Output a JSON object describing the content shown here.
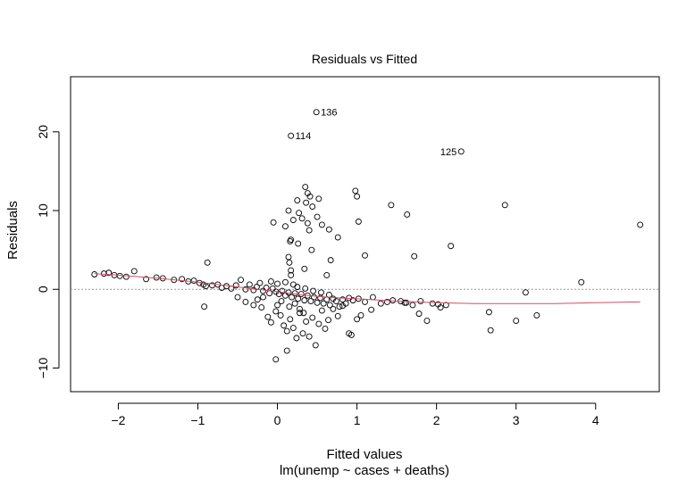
{
  "chart_data": {
    "type": "scatter",
    "title": "Residuals vs Fitted",
    "xlabel": "Fitted values",
    "subtitle": "lm(unemp ~ cases + deaths)",
    "ylabel": "Residuals",
    "xlim": [
      -2.6,
      4.8
    ],
    "ylim": [
      -13,
      27
    ],
    "x_ticks": [
      -2,
      -1,
      0,
      1,
      2,
      3,
      4
    ],
    "y_ticks": [
      -10,
      0,
      10,
      20
    ],
    "reference_line_y": 0,
    "points": [
      [
        0.49,
        22.5
      ],
      [
        0.17,
        19.5
      ],
      [
        2.31,
        17.5
      ],
      [
        0.35,
        13.0
      ],
      [
        0.38,
        12.2
      ],
      [
        0.41,
        11.8
      ],
      [
        0.98,
        12.5
      ],
      [
        1.0,
        11.8
      ],
      [
        0.52,
        11.5
      ],
      [
        0.25,
        11.3
      ],
      [
        0.36,
        11.0
      ],
      [
        0.44,
        10.5
      ],
      [
        0.14,
        10.0
      ],
      [
        0.27,
        9.7
      ],
      [
        0.31,
        9.0
      ],
      [
        0.5,
        9.2
      ],
      [
        0.2,
        8.8
      ],
      [
        -0.05,
        8.5
      ],
      [
        0.38,
        8.4
      ],
      [
        0.56,
        8.2
      ],
      [
        1.02,
        8.6
      ],
      [
        0.1,
        8.0
      ],
      [
        0.4,
        7.5
      ],
      [
        0.65,
        7.6
      ],
      [
        0.76,
        6.6
      ],
      [
        0.17,
        6.3
      ],
      [
        0.16,
        6.1
      ],
      [
        0.26,
        5.8
      ],
      [
        0.43,
        5.0
      ],
      [
        1.43,
        10.7
      ],
      [
        1.63,
        9.5
      ],
      [
        2.86,
        10.7
      ],
      [
        4.56,
        8.2
      ],
      [
        2.18,
        5.5
      ],
      [
        1.72,
        4.2
      ],
      [
        1.1,
        4.3
      ],
      [
        0.14,
        4.1
      ],
      [
        0.15,
        3.4
      ],
      [
        0.67,
        3.7
      ],
      [
        -0.88,
        3.4
      ],
      [
        0.34,
        2.6
      ],
      [
        0.62,
        1.8
      ],
      [
        0.17,
        2.4
      ],
      [
        0.17,
        1.8
      ],
      [
        -2.3,
        1.9
      ],
      [
        -2.18,
        2.0
      ],
      [
        -2.12,
        2.1
      ],
      [
        -2.05,
        1.8
      ],
      [
        -1.98,
        1.7
      ],
      [
        -1.9,
        1.6
      ],
      [
        -1.8,
        2.3
      ],
      [
        -1.65,
        1.3
      ],
      [
        -1.52,
        1.5
      ],
      [
        -1.44,
        1.4
      ],
      [
        -1.3,
        1.2
      ],
      [
        -1.2,
        1.3
      ],
      [
        -1.12,
        1.0
      ],
      [
        -1.05,
        1.1
      ],
      [
        -0.98,
        0.8
      ],
      [
        -0.93,
        0.6
      ],
      [
        -0.9,
        0.4
      ],
      [
        -0.82,
        0.5
      ],
      [
        -0.75,
        0.6
      ],
      [
        -0.7,
        0.2
      ],
      [
        -0.64,
        0.4
      ],
      [
        -0.58,
        0.1
      ],
      [
        -0.52,
        0.5
      ],
      [
        -0.46,
        1.2
      ],
      [
        -0.4,
        0.0
      ],
      [
        -0.35,
        0.6
      ],
      [
        -0.3,
        -0.1
      ],
      [
        -0.26,
        0.3
      ],
      [
        -0.22,
        0.8
      ],
      [
        -0.18,
        -0.2
      ],
      [
        -0.14,
        0.2
      ],
      [
        -0.1,
        -0.5
      ],
      [
        -0.06,
        0.1
      ],
      [
        -0.02,
        -0.3
      ],
      [
        0.02,
        -0.6
      ],
      [
        0.06,
        -0.2
      ],
      [
        0.1,
        -0.8
      ],
      [
        0.14,
        -0.4
      ],
      [
        0.18,
        -1.0
      ],
      [
        0.22,
        -0.5
      ],
      [
        0.26,
        -1.2
      ],
      [
        0.3,
        -0.6
      ],
      [
        0.34,
        -1.4
      ],
      [
        0.38,
        -0.8
      ],
      [
        0.42,
        -1.5
      ],
      [
        0.46,
        -1.0
      ],
      [
        0.5,
        -1.7
      ],
      [
        0.54,
        -1.1
      ],
      [
        0.58,
        -1.8
      ],
      [
        0.62,
        -1.3
      ],
      [
        0.66,
        -2.0
      ],
      [
        0.7,
        -1.2
      ],
      [
        0.74,
        -1.5
      ],
      [
        0.78,
        -2.2
      ],
      [
        0.82,
        -1.3
      ],
      [
        0.86,
        -1.8
      ],
      [
        0.9,
        -1.1
      ],
      [
        0.95,
        -1.4
      ],
      [
        1.02,
        -1.2
      ],
      [
        1.1,
        -1.6
      ],
      [
        1.2,
        -1.0
      ],
      [
        1.3,
        -1.8
      ],
      [
        1.38,
        -1.6
      ],
      [
        1.45,
        -1.4
      ],
      [
        1.55,
        -1.5
      ],
      [
        1.62,
        -1.7
      ],
      [
        1.7,
        -2.0
      ],
      [
        1.8,
        -1.5
      ],
      [
        1.95,
        -1.8
      ],
      [
        2.05,
        -2.3
      ],
      [
        2.12,
        -2.0
      ],
      [
        0.2,
        0.6
      ],
      [
        0.1,
        0.9
      ],
      [
        0.0,
        0.7
      ],
      [
        -0.08,
        1.0
      ],
      [
        0.25,
        0.3
      ],
      [
        0.35,
        0.1
      ],
      [
        0.45,
        -0.2
      ],
      [
        0.55,
        -0.4
      ],
      [
        0.65,
        -0.7
      ],
      [
        -0.92,
        -2.2
      ],
      [
        -0.5,
        -1.0
      ],
      [
        -0.4,
        -1.6
      ],
      [
        -0.3,
        -2.0
      ],
      [
        -0.2,
        -2.3
      ],
      [
        -0.12,
        -3.5
      ],
      [
        -0.08,
        -4.2
      ],
      [
        -0.02,
        -2.8
      ],
      [
        0.04,
        -3.3
      ],
      [
        0.08,
        -4.6
      ],
      [
        0.12,
        -5.3
      ],
      [
        0.16,
        -3.8
      ],
      [
        0.2,
        -4.9
      ],
      [
        0.24,
        -6.2
      ],
      [
        0.28,
        -3.0
      ],
      [
        0.32,
        -5.6
      ],
      [
        0.36,
        -4.1
      ],
      [
        0.4,
        -6.0
      ],
      [
        0.44,
        -3.6
      ],
      [
        0.48,
        -7.1
      ],
      [
        0.52,
        -4.4
      ],
      [
        0.56,
        -2.7
      ],
      [
        0.6,
        -5.0
      ],
      [
        0.64,
        -3.9
      ],
      [
        0.7,
        -2.5
      ],
      [
        0.76,
        -3.4
      ],
      [
        0.82,
        -2.1
      ],
      [
        0.9,
        -5.6
      ],
      [
        0.93,
        -5.8
      ],
      [
        1.0,
        -3.8
      ],
      [
        1.05,
        -3.3
      ],
      [
        1.18,
        -2.6
      ],
      [
        1.6,
        -1.7
      ],
      [
        1.78,
        -3.1
      ],
      [
        1.88,
        -4.0
      ],
      [
        2.02,
        -1.9
      ],
      [
        2.66,
        -2.9
      ],
      [
        2.68,
        -5.2
      ],
      [
        3.0,
        -4.0
      ],
      [
        3.12,
        -0.4
      ],
      [
        3.26,
        -3.3
      ],
      [
        3.82,
        0.9
      ],
      [
        -0.02,
        -8.9
      ],
      [
        0.12,
        -7.8
      ],
      [
        0.0,
        -2.0
      ],
      [
        0.05,
        -1.5
      ],
      [
        0.15,
        -2.2
      ],
      [
        0.22,
        -1.8
      ],
      [
        0.28,
        -2.5
      ],
      [
        0.33,
        -3.0
      ],
      [
        -0.18,
        -1.0
      ],
      [
        -0.25,
        -1.3
      ]
    ],
    "labeled_points": [
      {
        "label": "136",
        "x": 0.49,
        "y": 22.5,
        "side": "right"
      },
      {
        "label": "114",
        "x": 0.17,
        "y": 19.5,
        "side": "right"
      },
      {
        "label": "125",
        "x": 2.31,
        "y": 17.5,
        "side": "left"
      }
    ],
    "smooth_line": [
      [
        -2.3,
        2.0
      ],
      [
        -2.0,
        1.8
      ],
      [
        -1.5,
        1.4
      ],
      [
        -1.0,
        0.9
      ],
      [
        -0.5,
        0.3
      ],
      [
        0.0,
        -0.3
      ],
      [
        0.3,
        -0.7
      ],
      [
        0.5,
        -0.9
      ],
      [
        0.8,
        -1.1
      ],
      [
        1.0,
        -1.2
      ],
      [
        1.5,
        -1.5
      ],
      [
        2.0,
        -1.7
      ],
      [
        2.5,
        -1.8
      ],
      [
        3.0,
        -1.8
      ],
      [
        3.5,
        -1.8
      ],
      [
        4.0,
        -1.7
      ],
      [
        4.56,
        -1.6
      ]
    ],
    "colors": {
      "points": "#000000",
      "smooth": "#d24d6b",
      "reference": "#999999",
      "frame": "#000000"
    }
  }
}
